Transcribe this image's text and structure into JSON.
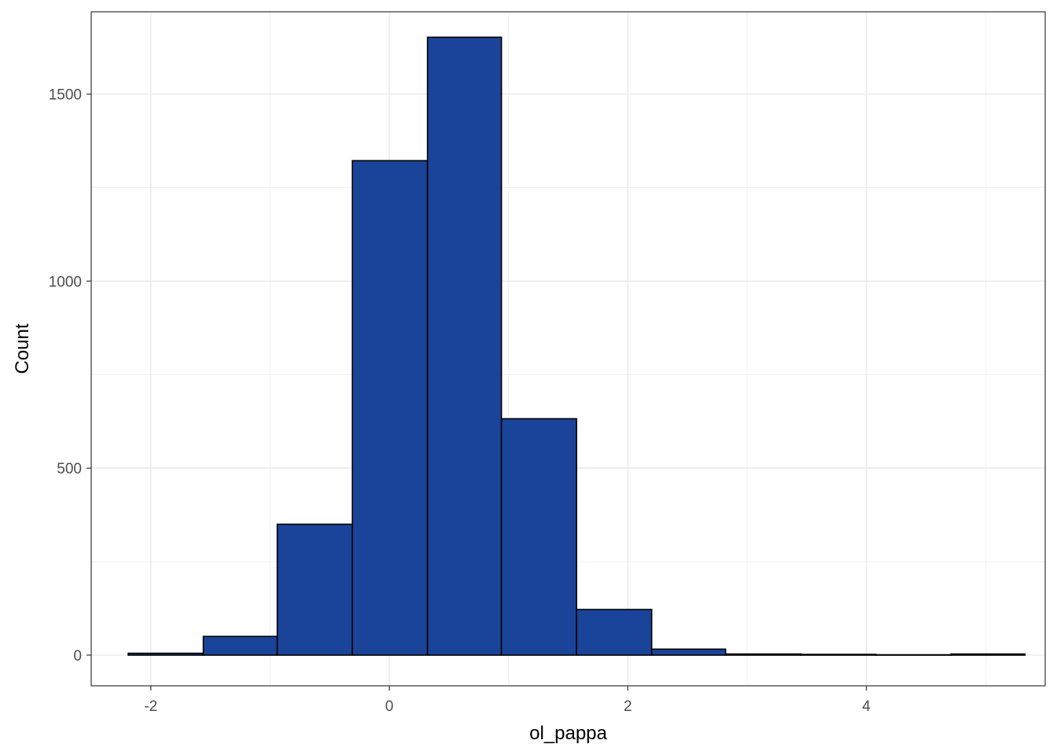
{
  "chart_data": {
    "type": "bar",
    "subtype": "histogram",
    "xlabel": "ol_pappa",
    "ylabel": "Count",
    "xlim": [
      -2.5,
      5.5
    ],
    "ylim": [
      -82,
      1720
    ],
    "x_ticks": [
      -2,
      0,
      2,
      4
    ],
    "x_tick_labels": [
      "-2",
      "0",
      "2",
      "4"
    ],
    "y_ticks": [
      0,
      500,
      1000,
      1500
    ],
    "y_tick_labels": [
      "0",
      "500",
      "1000",
      "1500"
    ],
    "x_minor_gridlines": [
      -1,
      1,
      3,
      5
    ],
    "y_minor_gridlines": [
      250,
      750,
      1250
    ],
    "grid": true,
    "bar_fill": "#1a4499",
    "bar_outline": "#000000",
    "bins": [
      {
        "x_start": -2.19,
        "x_end": -1.56,
        "count": 5
      },
      {
        "x_start": -1.56,
        "x_end": -0.94,
        "count": 50
      },
      {
        "x_start": -0.94,
        "x_end": -0.31,
        "count": 350
      },
      {
        "x_start": -0.31,
        "x_end": 0.32,
        "count": 1322
      },
      {
        "x_start": 0.32,
        "x_end": 0.94,
        "count": 1652
      },
      {
        "x_start": 0.94,
        "x_end": 1.57,
        "count": 632
      },
      {
        "x_start": 1.57,
        "x_end": 2.2,
        "count": 122
      },
      {
        "x_start": 2.2,
        "x_end": 2.82,
        "count": 16
      },
      {
        "x_start": 2.82,
        "x_end": 3.45,
        "count": 3
      },
      {
        "x_start": 3.45,
        "x_end": 4.08,
        "count": 2
      },
      {
        "x_start": 4.08,
        "x_end": 4.71,
        "count": 1
      },
      {
        "x_start": 4.71,
        "x_end": 5.33,
        "count": 3
      }
    ]
  }
}
